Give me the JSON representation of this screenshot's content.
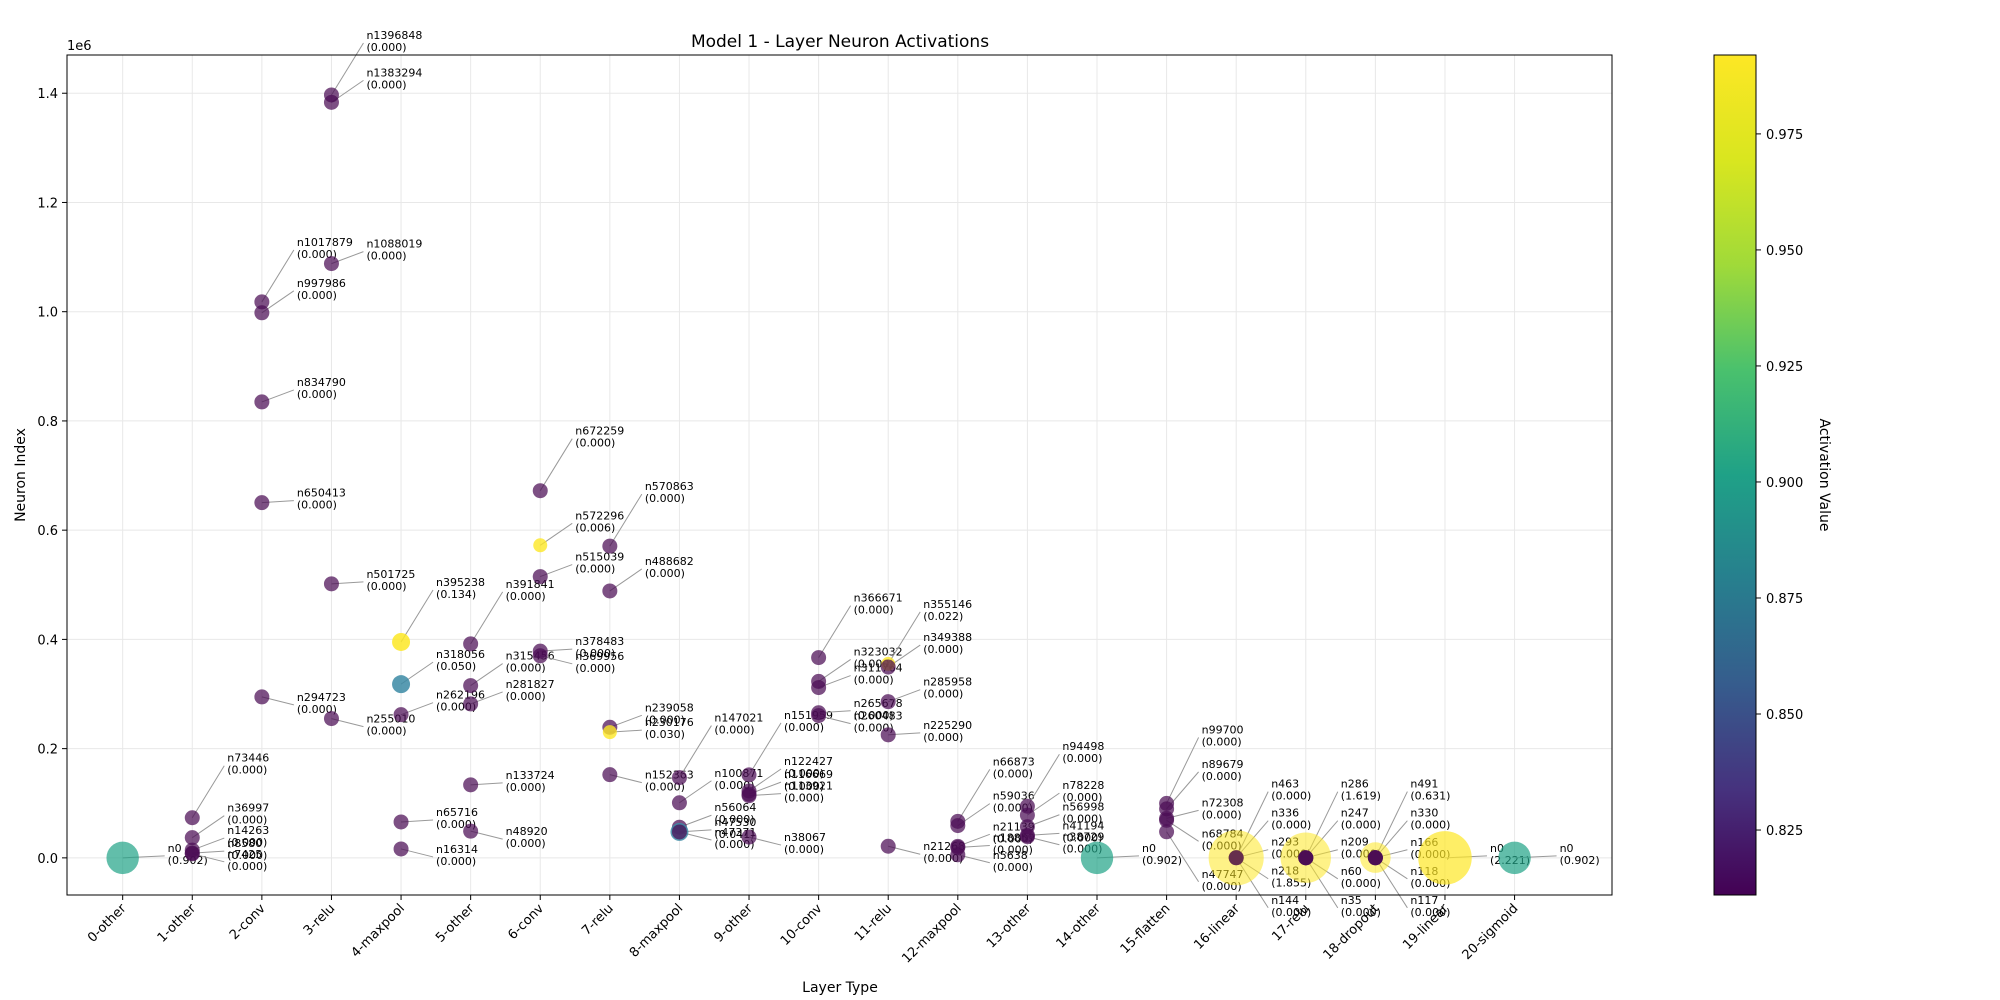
{
  "chart_data": {
    "type": "scatter",
    "title": "Model 1 - Layer Neuron Activations",
    "xlabel": "Layer Type",
    "ylabel": "Neuron Index",
    "y_multiplier_label": "1e6",
    "y_ticks": [
      "0.0",
      "0.2",
      "0.4",
      "0.6",
      "0.8",
      "1.0",
      "1.2",
      "1.4"
    ],
    "y_tick_values": [
      0,
      0.2,
      0.4,
      0.6,
      0.8,
      1.0,
      1.2,
      1.4
    ],
    "ylim": [
      -0.068,
      1.47
    ],
    "xlim": [
      -0.8,
      21.4
    ],
    "grid": true,
    "categories": [
      "0-other",
      "1-other",
      "2-conv",
      "3-relu",
      "4-maxpool",
      "5-other",
      "6-conv",
      "7-relu",
      "8-maxpool",
      "9-other",
      "10-conv",
      "11-relu",
      "12-maxpool",
      "13-other",
      "14-other",
      "15-flatten",
      "16-linear",
      "17-relu",
      "18-dropout",
      "19-linear",
      "20-sigmoid"
    ],
    "colorbar": {
      "label": "Activation Value",
      "min": 0.811,
      "max": 0.992,
      "ticks": [
        "0.825",
        "0.850",
        "0.875",
        "0.900",
        "0.925",
        "0.950",
        "0.975"
      ],
      "tick_values": [
        0.825,
        0.85,
        0.875,
        0.9,
        0.925,
        0.95,
        0.975
      ]
    },
    "points": [
      {
        "layer": 0,
        "neuron": 0,
        "activation": 0.902,
        "label": "n0\n(0.902)"
      },
      {
        "layer": 1,
        "neuron": 73446,
        "activation": 0.0,
        "label": "n73446\n(0.000)"
      },
      {
        "layer": 1,
        "neuron": 36997,
        "activation": 0.0,
        "label": "n36997\n(0.000)"
      },
      {
        "layer": 1,
        "neuron": 14263,
        "activation": 0.0,
        "label": "n14263\n(0.000)"
      },
      {
        "layer": 1,
        "neuron": 8580,
        "activation": 0.0,
        "label": "n8580\n(0.000)"
      },
      {
        "layer": 1,
        "neuron": 7425,
        "activation": 0.0,
        "label": "n7425\n(0.000)"
      },
      {
        "layer": 2,
        "neuron": 1017879,
        "activation": 0.0,
        "label": "n1017879\n(0.000)"
      },
      {
        "layer": 2,
        "neuron": 997986,
        "activation": 0.0,
        "label": "n997986\n(0.000)"
      },
      {
        "layer": 2,
        "neuron": 834790,
        "activation": 0.0,
        "label": "n834790\n(0.000)"
      },
      {
        "layer": 2,
        "neuron": 650413,
        "activation": 0.0,
        "label": "n650413\n(0.000)"
      },
      {
        "layer": 2,
        "neuron": 294723,
        "activation": 0.0,
        "label": "n294723\n(0.000)"
      },
      {
        "layer": 3,
        "neuron": 1396848,
        "activation": 0.0,
        "label": "n1396848\n(0.000)"
      },
      {
        "layer": 3,
        "neuron": 1383294,
        "activation": 0.0,
        "label": "n1383294\n(0.000)"
      },
      {
        "layer": 3,
        "neuron": 1088019,
        "activation": 0.0,
        "label": "n1088019\n(0.000)"
      },
      {
        "layer": 3,
        "neuron": 501725,
        "activation": 0.0,
        "label": "n501725\n(0.000)"
      },
      {
        "layer": 3,
        "neuron": 255010,
        "activation": 0.0,
        "label": "n255010\n(0.000)"
      },
      {
        "layer": 4,
        "neuron": 395238,
        "activation": 0.134,
        "label": "n395238\n(0.134)"
      },
      {
        "layer": 4,
        "neuron": 318056,
        "activation": 0.05,
        "label": "n318056\n(0.050)"
      },
      {
        "layer": 4,
        "neuron": 262196,
        "activation": 0.0,
        "label": "n262196\n(0.000)"
      },
      {
        "layer": 4,
        "neuron": 65716,
        "activation": 0.0,
        "label": "n65716\n(0.000)"
      },
      {
        "layer": 4,
        "neuron": 16314,
        "activation": 0.0,
        "label": "n16314\n(0.000)"
      },
      {
        "layer": 5,
        "neuron": 391841,
        "activation": 0.0,
        "label": "n391841\n(0.000)"
      },
      {
        "layer": 5,
        "neuron": 315456,
        "activation": 0.0,
        "label": "n315456\n(0.000)"
      },
      {
        "layer": 5,
        "neuron": 281827,
        "activation": 0.0,
        "label": "n281827\n(0.000)"
      },
      {
        "layer": 5,
        "neuron": 133724,
        "activation": 0.0,
        "label": "n133724\n(0.000)"
      },
      {
        "layer": 5,
        "neuron": 48920,
        "activation": 0.0,
        "label": "n48920\n(0.000)"
      },
      {
        "layer": 6,
        "neuron": 672259,
        "activation": 0.0,
        "label": "n672259\n(0.000)"
      },
      {
        "layer": 6,
        "neuron": 572296,
        "activation": 0.006,
        "label": "n572296\n(0.006)"
      },
      {
        "layer": 6,
        "neuron": 515039,
        "activation": 0.0,
        "label": "n515039\n(0.000)"
      },
      {
        "layer": 6,
        "neuron": 378483,
        "activation": 0.0,
        "label": "n378483\n(0.000)"
      },
      {
        "layer": 6,
        "neuron": 369956,
        "activation": 0.0,
        "label": "n369956\n(0.000)"
      },
      {
        "layer": 7,
        "neuron": 570863,
        "activation": 0.0,
        "label": "n570863\n(0.000)"
      },
      {
        "layer": 7,
        "neuron": 488682,
        "activation": 0.0,
        "label": "n488682\n(0.000)"
      },
      {
        "layer": 7,
        "neuron": 239058,
        "activation": 0.0,
        "label": "n239058\n(0.000)"
      },
      {
        "layer": 7,
        "neuron": 230176,
        "activation": 0.03,
        "label": "n230176\n(0.030)"
      },
      {
        "layer": 7,
        "neuron": 152363,
        "activation": 0.0,
        "label": "n152363\n(0.000)"
      },
      {
        "layer": 8,
        "neuron": 147021,
        "activation": 0.0,
        "label": "n147021\n(0.000)"
      },
      {
        "layer": 8,
        "neuron": 100871,
        "activation": 0.0,
        "label": "n100871\n(0.000)"
      },
      {
        "layer": 8,
        "neuron": 56064,
        "activation": 0.0,
        "label": "n56064\n(0.000)"
      },
      {
        "layer": 8,
        "neuron": 47530,
        "activation": 0.041,
        "label": "n47530\n(0.041)"
      },
      {
        "layer": 8,
        "neuron": 47371,
        "activation": 0.0,
        "label": "n47371\n(0.000)"
      },
      {
        "layer": 9,
        "neuron": 151959,
        "activation": 0.0,
        "label": "n151959\n(0.000)"
      },
      {
        "layer": 9,
        "neuron": 122427,
        "activation": 0.0,
        "label": "n122427\n(0.000)"
      },
      {
        "layer": 9,
        "neuron": 116669,
        "activation": 0.0,
        "label": "n116669\n(0.000)"
      },
      {
        "layer": 9,
        "neuron": 113921,
        "activation": 0.0,
        "label": "n113921\n(0.000)"
      },
      {
        "layer": 9,
        "neuron": 38067,
        "activation": 0.0,
        "label": "n38067\n(0.000)"
      },
      {
        "layer": 10,
        "neuron": 366671,
        "activation": 0.0,
        "label": "n366671\n(0.000)"
      },
      {
        "layer": 10,
        "neuron": 323032,
        "activation": 0.0,
        "label": "n323032\n(0.000)"
      },
      {
        "layer": 10,
        "neuron": 311764,
        "activation": 0.0,
        "label": "n311764\n(0.000)"
      },
      {
        "layer": 10,
        "neuron": 265678,
        "activation": 0.0,
        "label": "n265678\n(0.000)"
      },
      {
        "layer": 10,
        "neuron": 260483,
        "activation": 0.0,
        "label": "n260483\n(0.000)"
      },
      {
        "layer": 11,
        "neuron": 355146,
        "activation": 0.022,
        "label": "n355146\n(0.022)"
      },
      {
        "layer": 11,
        "neuron": 349388,
        "activation": 0.0,
        "label": "n349388\n(0.000)"
      },
      {
        "layer": 11,
        "neuron": 285958,
        "activation": 0.0,
        "label": "n285958\n(0.000)"
      },
      {
        "layer": 11,
        "neuron": 225290,
        "activation": 0.0,
        "label": "n225290\n(0.000)"
      },
      {
        "layer": 11,
        "neuron": 21268,
        "activation": 0.0,
        "label": "n21268\n(0.000)"
      },
      {
        "layer": 12,
        "neuron": 66873,
        "activation": 0.0,
        "label": "n66873\n(0.000)"
      },
      {
        "layer": 12,
        "neuron": 59036,
        "activation": 0.0,
        "label": "n59036\n(0.000)"
      },
      {
        "layer": 12,
        "neuron": 21139,
        "activation": 0.0,
        "label": "n21139\n(0.000)"
      },
      {
        "layer": 12,
        "neuron": 18859,
        "activation": 0.0,
        "label": "n18859\n(0.000)"
      },
      {
        "layer": 12,
        "neuron": 5638,
        "activation": 0.0,
        "label": "n5638\n(0.000)"
      },
      {
        "layer": 13,
        "neuron": 94498,
        "activation": 0.0,
        "label": "n94498\n(0.000)"
      },
      {
        "layer": 13,
        "neuron": 78228,
        "activation": 0.0,
        "label": "n78228\n(0.000)"
      },
      {
        "layer": 13,
        "neuron": 56998,
        "activation": 0.0,
        "label": "n56998\n(0.000)"
      },
      {
        "layer": 13,
        "neuron": 41194,
        "activation": 0.0,
        "label": "n41194\n(0.000)"
      },
      {
        "layer": 13,
        "neuron": 38729,
        "activation": 0.0,
        "label": "n38729\n(0.000)"
      },
      {
        "layer": 14,
        "neuron": 0,
        "activation": 0.902,
        "label": "n0\n(0.902)"
      },
      {
        "layer": 15,
        "neuron": 99700,
        "activation": 0.0,
        "label": "n99700\n(0.000)"
      },
      {
        "layer": 15,
        "neuron": 89679,
        "activation": 0.0,
        "label": "n89679\n(0.000)"
      },
      {
        "layer": 15,
        "neuron": 72308,
        "activation": 0.0,
        "label": "n72308\n(0.000)"
      },
      {
        "layer": 15,
        "neuron": 68784,
        "activation": 0.0,
        "label": "n68784\n(0.000)"
      },
      {
        "layer": 15,
        "neuron": 47747,
        "activation": 0.0,
        "label": "n47747\n(0.000)"
      },
      {
        "layer": 16,
        "neuron": 463,
        "activation": 0.0,
        "label": "n463\n(0.000)"
      },
      {
        "layer": 16,
        "neuron": 336,
        "activation": 0.0,
        "label": "n336\n(0.000)"
      },
      {
        "layer": 16,
        "neuron": 293,
        "activation": 0.0,
        "label": "n293\n(0.000)"
      },
      {
        "layer": 16,
        "neuron": 218,
        "activation": 1.855,
        "label": "n218\n(1.855)"
      },
      {
        "layer": 16,
        "neuron": 144,
        "activation": 0.0,
        "label": "n144\n(0.000)"
      },
      {
        "layer": 17,
        "neuron": 286,
        "activation": 1.619,
        "label": "n286\n(1.619)"
      },
      {
        "layer": 17,
        "neuron": 247,
        "activation": 0.0,
        "label": "n247\n(0.000)"
      },
      {
        "layer": 17,
        "neuron": 209,
        "activation": 0.0,
        "label": "n209\n(0.000)"
      },
      {
        "layer": 17,
        "neuron": 60,
        "activation": 0.0,
        "label": "n60\n(0.000)"
      },
      {
        "layer": 17,
        "neuron": 35,
        "activation": 0.0,
        "label": "n35\n(0.000)"
      },
      {
        "layer": 18,
        "neuron": 491,
        "activation": 0.631,
        "label": "n491\n(0.631)"
      },
      {
        "layer": 18,
        "neuron": 330,
        "activation": 0.0,
        "label": "n330\n(0.000)"
      },
      {
        "layer": 18,
        "neuron": 166,
        "activation": 0.0,
        "label": "n166\n(0.000)"
      },
      {
        "layer": 18,
        "neuron": 118,
        "activation": 0.0,
        "label": "n118\n(0.000)"
      },
      {
        "layer": 18,
        "neuron": 117,
        "activation": 0.0,
        "label": "n117\n(0.000)"
      },
      {
        "layer": 19,
        "neuron": 0,
        "activation": 2.221,
        "label": "n0\n(2.221)"
      },
      {
        "layer": 20,
        "neuron": 0,
        "activation": 0.902,
        "label": "n0\n(0.902)"
      }
    ]
  }
}
